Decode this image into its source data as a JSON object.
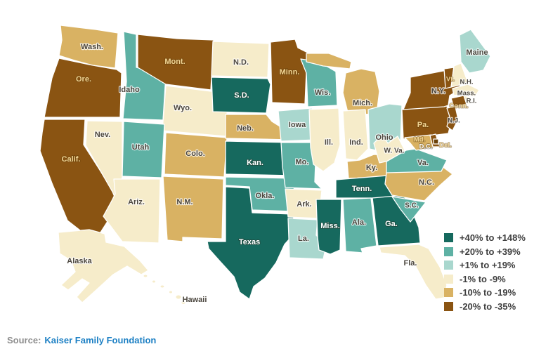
{
  "legend": {
    "items": [
      {
        "label": "+40% to +148%",
        "color": "#16695e"
      },
      {
        "label": "+20% to +39%",
        "color": "#5eb1a4"
      },
      {
        "label": "+1% to +19%",
        "color": "#a9d7ce"
      },
      {
        "label": "-1% to -9%",
        "color": "#f6ecca"
      },
      {
        "label": "-10% to -19%",
        "color": "#d9b263"
      },
      {
        "label": "-20% to -35%",
        "color": "#8a5412"
      }
    ]
  },
  "map": {
    "label_colors": {
      "dark": "#4c473f",
      "white": "#ffffff",
      "gold": "#f0d595"
    },
    "states": [
      {
        "id": "wa",
        "label": "Wash.",
        "category": 4,
        "label_color": "dark"
      },
      {
        "id": "or",
        "label": "Ore.",
        "category": 5,
        "label_color": "gold"
      },
      {
        "id": "ca",
        "label": "Calif.",
        "category": 5,
        "label_color": "gold"
      },
      {
        "id": "nv",
        "label": "Nev.",
        "category": 3,
        "label_color": "dark"
      },
      {
        "id": "id",
        "label": "Idaho",
        "category": 1,
        "label_color": "dark"
      },
      {
        "id": "mt",
        "label": "Mont.",
        "category": 5,
        "label_color": "gold"
      },
      {
        "id": "wy",
        "label": "Wyo.",
        "category": 3,
        "label_color": "dark"
      },
      {
        "id": "ut",
        "label": "Utah",
        "category": 1,
        "label_color": "dark"
      },
      {
        "id": "az",
        "label": "Ariz.",
        "category": 3,
        "label_color": "dark"
      },
      {
        "id": "co",
        "label": "Colo.",
        "category": 4,
        "label_color": "dark"
      },
      {
        "id": "nm",
        "label": "N.M.",
        "category": 4,
        "label_color": "dark"
      },
      {
        "id": "nd",
        "label": "N.D.",
        "category": 3,
        "label_color": "dark"
      },
      {
        "id": "sd",
        "label": "S.D.",
        "category": 0,
        "label_color": "white"
      },
      {
        "id": "ne",
        "label": "Neb.",
        "category": 4,
        "label_color": "dark"
      },
      {
        "id": "ks",
        "label": "Kan.",
        "category": 0,
        "label_color": "white"
      },
      {
        "id": "ok",
        "label": "Okla.",
        "category": 1,
        "label_color": "dark"
      },
      {
        "id": "tx",
        "label": "Texas",
        "category": 0,
        "label_color": "white"
      },
      {
        "id": "mn",
        "label": "Minn.",
        "category": 5,
        "label_color": "gold"
      },
      {
        "id": "ia",
        "label": "Iowa",
        "category": 2,
        "label_color": "dark"
      },
      {
        "id": "mo",
        "label": "Mo.",
        "category": 1,
        "label_color": "dark"
      },
      {
        "id": "ar",
        "label": "Ark.",
        "category": 3,
        "label_color": "dark"
      },
      {
        "id": "la",
        "label": "La.",
        "category": 2,
        "label_color": "dark"
      },
      {
        "id": "wi",
        "label": "Wis.",
        "category": 1,
        "label_color": "dark"
      },
      {
        "id": "il",
        "label": "Ill.",
        "category": 3,
        "label_color": "dark"
      },
      {
        "id": "mi_up",
        "label": "",
        "category": 4,
        "label_color": "dark"
      },
      {
        "id": "mi",
        "label": "Mich.",
        "category": 4,
        "label_color": "dark"
      },
      {
        "id": "in",
        "label": "Ind.",
        "category": 3,
        "label_color": "dark"
      },
      {
        "id": "oh",
        "label": "Ohio",
        "category": 2,
        "label_color": "dark"
      },
      {
        "id": "ky",
        "label": "Ky.",
        "category": 4,
        "label_color": "dark"
      },
      {
        "id": "tn",
        "label": "Tenn.",
        "category": 0,
        "label_color": "white"
      },
      {
        "id": "ms",
        "label": "Miss.",
        "category": 0,
        "label_color": "white"
      },
      {
        "id": "al",
        "label": "Ala.",
        "category": 1,
        "label_color": "dark"
      },
      {
        "id": "ga",
        "label": "Ga.",
        "category": 0,
        "label_color": "white"
      },
      {
        "id": "fl",
        "label": "Fla.",
        "category": 3,
        "label_color": "dark"
      },
      {
        "id": "sc",
        "label": "S.C.",
        "category": 1,
        "label_color": "dark"
      },
      {
        "id": "nc",
        "label": "N.C.",
        "category": 4,
        "label_color": "dark"
      },
      {
        "id": "pa",
        "label": "Pa.",
        "category": 5,
        "label_color": "gold"
      },
      {
        "id": "ny",
        "label": "N.Y.",
        "category": 5,
        "label_color": "dark"
      },
      {
        "id": "wv",
        "label": "W. Va.",
        "category": 3,
        "label_color": "dark"
      },
      {
        "id": "va",
        "label": "Va.",
        "category": 1,
        "label_color": "dark"
      },
      {
        "id": "md",
        "label": "Md.",
        "category": 4,
        "label_color": "gold"
      },
      {
        "id": "de",
        "label": "Del.",
        "category": 5,
        "label_color": "gold"
      },
      {
        "id": "nj",
        "label": "N.J.",
        "category": 5,
        "label_color": "dark"
      },
      {
        "id": "ct",
        "label": "Conn.",
        "category": 5,
        "label_color": "gold"
      },
      {
        "id": "ri",
        "label": "R.I.",
        "category": 3,
        "label_color": "dark"
      },
      {
        "id": "ma",
        "label": "Mass.",
        "category": 3,
        "label_color": "dark"
      },
      {
        "id": "vt",
        "label": "Vt.",
        "category": 5,
        "label_color": "gold"
      },
      {
        "id": "nh",
        "label": "N.H.",
        "category": 3,
        "label_color": "dark"
      },
      {
        "id": "me",
        "label": "Maine",
        "category": 2,
        "label_color": "dark"
      },
      {
        "id": "dc",
        "label": "D.C.",
        "category": 5,
        "label_color": "white"
      },
      {
        "id": "ak",
        "label": "Alaska",
        "category": 3,
        "label_color": "dark"
      },
      {
        "id": "hi",
        "label": "Hawaii",
        "category": 3,
        "label_color": "dark"
      }
    ]
  },
  "source": {
    "prefix": "Source:",
    "organization": "Kaiser Family Foundation"
  }
}
